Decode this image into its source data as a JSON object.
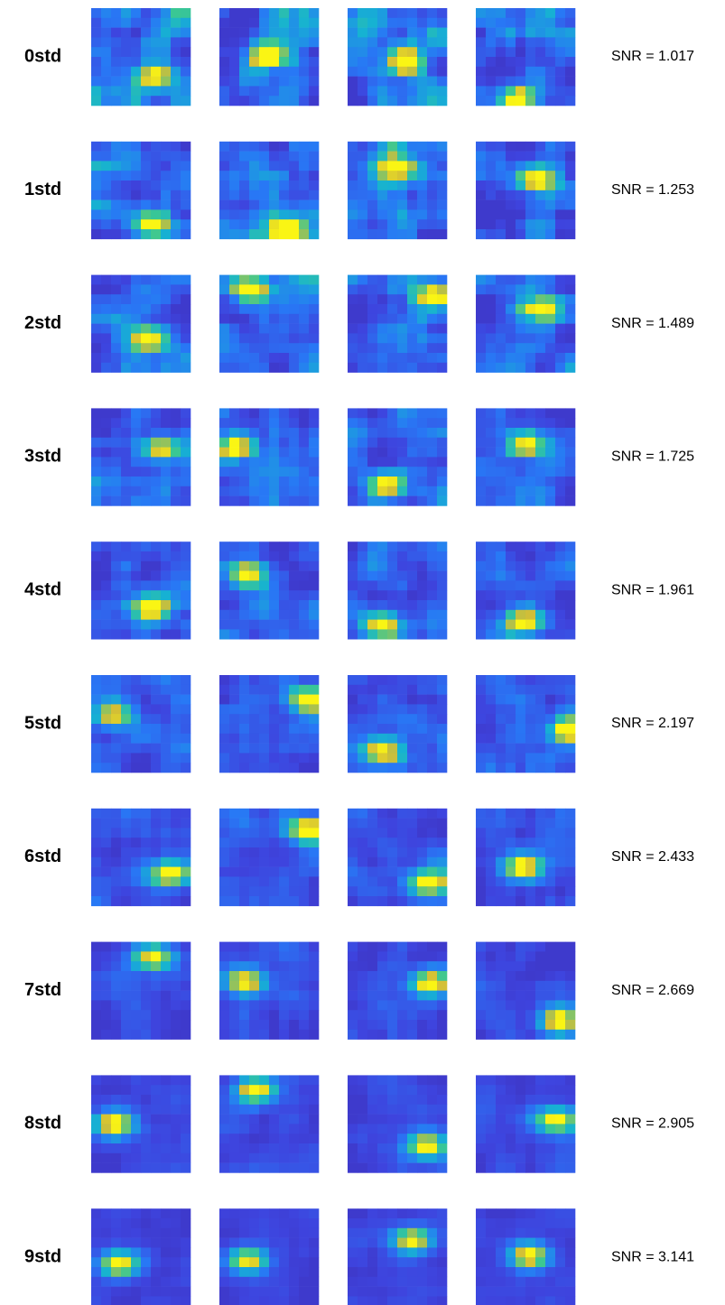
{
  "rows": [
    {
      "label": "0std",
      "snr": "SNR = 1.017"
    },
    {
      "label": "1std",
      "snr": "SNR = 1.253"
    },
    {
      "label": "2std",
      "snr": "SNR = 1.489"
    },
    {
      "label": "3std",
      "snr": "SNR = 1.725"
    },
    {
      "label": "4std",
      "snr": "SNR = 1.961"
    },
    {
      "label": "5std",
      "snr": "SNR = 2.197"
    },
    {
      "label": "6std",
      "snr": "SNR = 2.433"
    },
    {
      "label": "7std",
      "snr": "SNR = 2.669"
    },
    {
      "label": "8std",
      "snr": "SNR = 2.905"
    },
    {
      "label": "9std",
      "snr": "SNR = 3.141"
    }
  ]
}
